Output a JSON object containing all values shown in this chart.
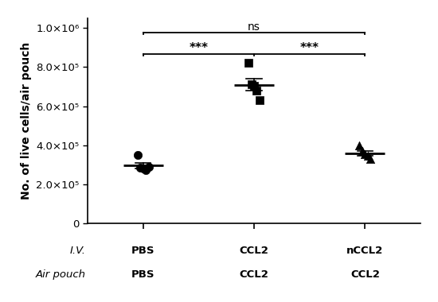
{
  "groups": [
    "PBS",
    "CCL2",
    "nCCL2"
  ],
  "x_positions": [
    1,
    2,
    3
  ],
  "pbs_data": [
    350000.0,
    285000.0,
    280000.0,
    275000.0,
    290000.0
  ],
  "ccl2_data": [
    820000.0,
    710000.0,
    705000.0,
    680000.0,
    630000.0
  ],
  "nccl2_data": [
    400000.0,
    370000.0,
    355000.0,
    345000.0,
    330000.0
  ],
  "pbs_mean": 296000.0,
  "ccl2_mean": 709000.0,
  "nccl2_mean": 360000.0,
  "ylabel": "No. of live cells/air pouch",
  "ylim": [
    0,
    1050000.0
  ],
  "yticks": [
    0,
    200000.0,
    400000.0,
    600000.0,
    800000.0,
    1000000.0
  ],
  "ytick_labels": [
    "0",
    "2.0×10⁵",
    "4.0×10⁵",
    "6.0×10⁵",
    "8.0×10⁵",
    "1.0×10⁶"
  ],
  "iv_labels": [
    "PBS",
    "CCL2",
    "nCCL2"
  ],
  "airpouch_labels": [
    "PBS",
    "CCL2",
    "CCL2"
  ],
  "sig_pbs_ccl2": "***",
  "sig_ccl2_nccl2": "***",
  "sig_pbs_nccl2": "ns",
  "background_color": "#ffffff",
  "marker_color": "#000000",
  "line_color": "#000000"
}
